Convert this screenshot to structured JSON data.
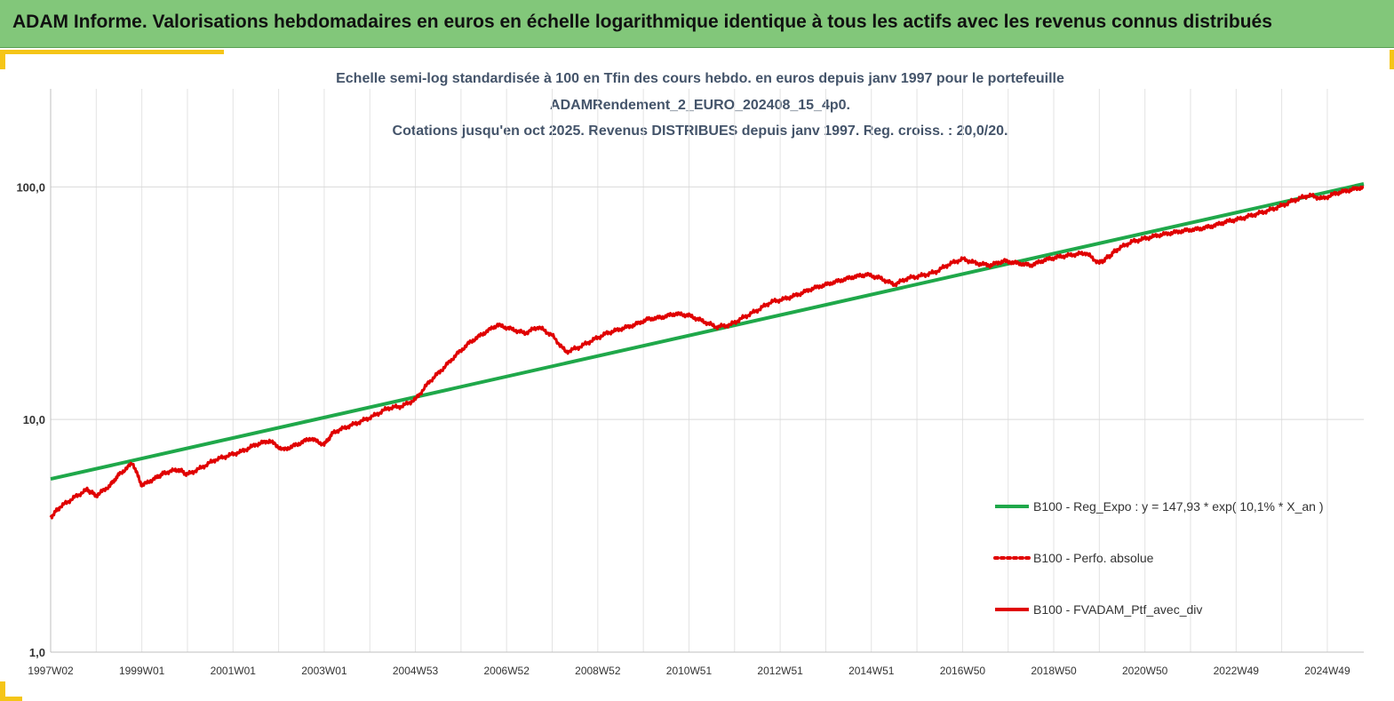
{
  "banner": {
    "title": "ADAM Informe. Valorisations hebdomadaires en euros en échelle logarithmique identique à tous les actifs avec les revenus connus distribués"
  },
  "chart_data": {
    "type": "line",
    "title_lines": [
      "Echelle semi-log standardisée à 100 en Tfin des cours hebdo.  en euros depuis janv 1997 pour le portefeuille",
      "ADAMRendement_2_EURO_202408_15_4p0.",
      "Cotations  jusqu'en oct 2025. Revenus DISTRIBUES depuis janv 1997. Reg. croiss.  : 20,0/20."
    ],
    "y_scale": "log",
    "ylim": [
      1,
      170
    ],
    "y_ticks": [
      {
        "value": 1,
        "label": "1,0"
      },
      {
        "value": 10,
        "label": "10,0"
      },
      {
        "value": 100,
        "label": "100,0"
      }
    ],
    "xlim": [
      1997.0,
      2025.8
    ],
    "x_ticks": [
      {
        "x": 1997.0,
        "label": "1997W02"
      },
      {
        "x": 1999.0,
        "label": "1999W01"
      },
      {
        "x": 2001.0,
        "label": "2001W01"
      },
      {
        "x": 2003.0,
        "label": "2003W01"
      },
      {
        "x": 2005.0,
        "label": "2004W53"
      },
      {
        "x": 2007.0,
        "label": "2006W52"
      },
      {
        "x": 2009.0,
        "label": "2008W52"
      },
      {
        "x": 2011.0,
        "label": "2010W51"
      },
      {
        "x": 2013.0,
        "label": "2012W51"
      },
      {
        "x": 2015.0,
        "label": "2014W51"
      },
      {
        "x": 2017.0,
        "label": "2016W50"
      },
      {
        "x": 2019.0,
        "label": "2018W50"
      },
      {
        "x": 2021.0,
        "label": "2020W50"
      },
      {
        "x": 2023.0,
        "label": "2022W49"
      },
      {
        "x": 2025.0,
        "label": "2024W49"
      }
    ],
    "grid_x": true,
    "grid_y": true,
    "legend_position": "right",
    "series": [
      {
        "name": "B100 - Reg_Expo : y = 147,93 * exp( 10,1% *  X_an )",
        "color": "#1fa84a",
        "style": "solid",
        "x": [
          1997.0,
          2025.8
        ],
        "y": [
          5.55,
          103
        ]
      },
      {
        "name": "B100 - Perfo. absolue",
        "color": "#e00000",
        "style": "dotted",
        "x": [],
        "y": []
      },
      {
        "name": "B100 - FVADAM_Ptf_avec_div",
        "color": "#e00000",
        "style": "solid",
        "x": [
          1997.0,
          1997.2,
          1997.5,
          1997.8,
          1998.0,
          1998.3,
          1998.5,
          1998.8,
          1999.0,
          1999.3,
          1999.5,
          1999.8,
          2000.0,
          2000.3,
          2000.6,
          2000.9,
          2001.2,
          2001.5,
          2001.8,
          2002.1,
          2002.4,
          2002.7,
          2003.0,
          2003.2,
          2003.5,
          2003.8,
          2004.1,
          2004.4,
          2004.7,
          2005.0,
          2005.3,
          2005.6,
          2005.9,
          2006.2,
          2006.5,
          2006.8,
          2007.1,
          2007.4,
          2007.7,
          2008.0,
          2008.3,
          2008.6,
          2008.9,
          2009.2,
          2009.5,
          2009.8,
          2010.1,
          2010.4,
          2010.7,
          2011.0,
          2011.3,
          2011.6,
          2011.9,
          2012.2,
          2012.5,
          2012.8,
          2013.1,
          2013.4,
          2013.7,
          2014.0,
          2014.3,
          2014.6,
          2014.9,
          2015.2,
          2015.5,
          2015.8,
          2016.1,
          2016.4,
          2016.7,
          2017.0,
          2017.3,
          2017.6,
          2017.9,
          2018.2,
          2018.5,
          2018.8,
          2019.1,
          2019.4,
          2019.7,
          2020.0,
          2020.2,
          2020.4,
          2020.7,
          2021.0,
          2021.3,
          2021.6,
          2021.9,
          2022.2,
          2022.5,
          2022.8,
          2023.1,
          2023.4,
          2023.7,
          2024.0,
          2024.3,
          2024.6,
          2024.9,
          2025.2,
          2025.5,
          2025.8
        ],
        "y": [
          3.8,
          4.2,
          4.6,
          5.0,
          4.7,
          5.2,
          5.8,
          6.5,
          5.2,
          5.6,
          5.9,
          6.1,
          5.8,
          6.2,
          6.7,
          7.0,
          7.3,
          7.8,
          8.1,
          7.4,
          7.8,
          8.3,
          7.8,
          8.8,
          9.3,
          9.8,
          10.4,
          11.2,
          11.4,
          12.2,
          14.5,
          16.5,
          19.0,
          21.5,
          23.5,
          25.5,
          24.5,
          23.5,
          25.0,
          23.0,
          19.5,
          20.5,
          22.0,
          23.5,
          24.5,
          25.5,
          27.0,
          27.5,
          28.5,
          28.0,
          26.5,
          25.0,
          25.5,
          27.5,
          29.5,
          32.0,
          33.0,
          34.5,
          36.5,
          38.0,
          39.5,
          41.0,
          42.0,
          40.5,
          38.0,
          40.5,
          41.5,
          43.0,
          46.5,
          49.0,
          47.0,
          46.0,
          48.0,
          47.0,
          46.0,
          48.5,
          50.0,
          51.0,
          52.0,
          47.0,
          50.0,
          54.0,
          58.0,
          60.0,
          62.0,
          63.5,
          65.0,
          66.0,
          68.0,
          71.0,
          73.0,
          76.0,
          79.0,
          83.0,
          88.0,
          92.0,
          89.0,
          94.0,
          97.0,
          100.0
        ]
      }
    ]
  }
}
